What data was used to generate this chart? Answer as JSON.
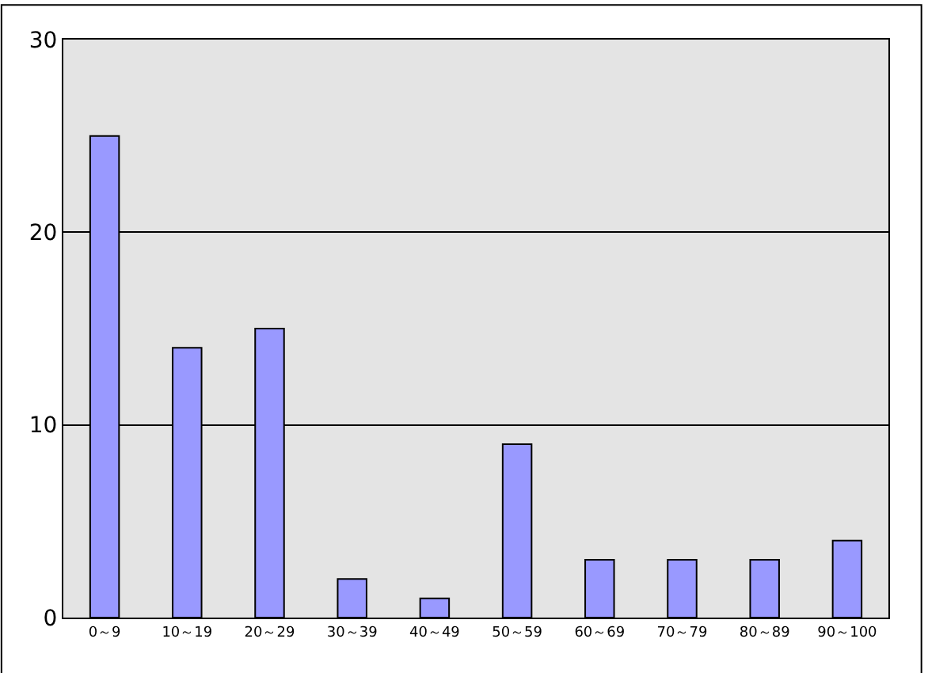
{
  "chart_data": {
    "type": "bar",
    "categories": [
      "0～9",
      "10～19",
      "20～29",
      "30～39",
      "40～49",
      "50～59",
      "60～69",
      "70～79",
      "80～89",
      "90～100"
    ],
    "values": [
      25,
      14,
      15,
      2,
      1,
      9,
      3,
      3,
      3,
      4
    ],
    "color": "#9999ff",
    "ylim": [
      0,
      30
    ],
    "yticks": [
      0,
      10,
      20,
      30
    ],
    "grid": "y",
    "legend": false
  }
}
